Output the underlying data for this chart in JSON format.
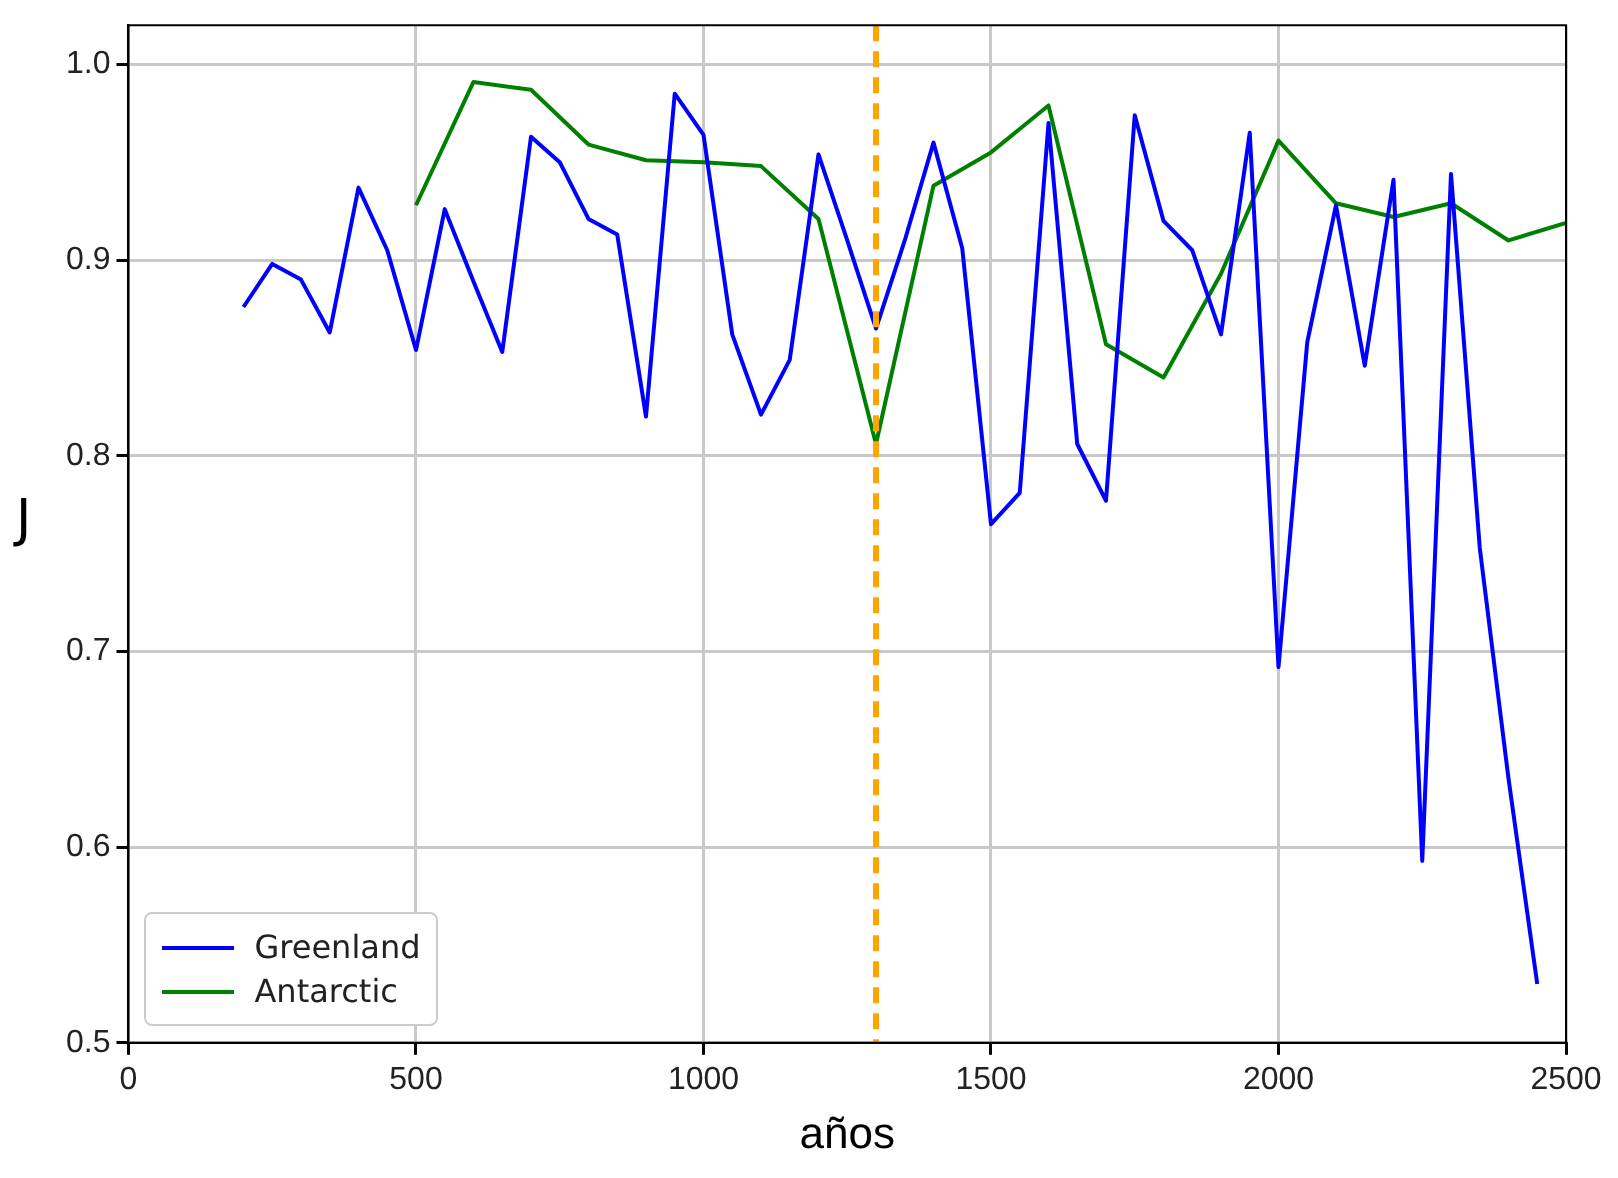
{
  "chart_data": {
    "type": "line",
    "xlabel": "años",
    "ylabel": "J",
    "xlim": [
      0,
      2500
    ],
    "xticks": [
      0,
      500,
      1000,
      1500,
      2000,
      2500
    ],
    "ylim": [
      0.5,
      1.02
    ],
    "yticks": [
      {
        "value": 0.5,
        "label": "0.5"
      },
      {
        "value": 0.6,
        "label": "0.6"
      },
      {
        "value": 0.7,
        "label": "0.7"
      },
      {
        "value": 0.8,
        "label": "0.8"
      },
      {
        "value": 0.9,
        "label": "0.9"
      },
      {
        "value": 1.0,
        "label": "1.0"
      }
    ],
    "grid": true,
    "legend": "bottom left",
    "marker": "none",
    "line_style": "solid",
    "series": [
      {
        "name": "Greenland",
        "color": "#0000ff",
        "x": [
          200,
          250,
          300,
          350,
          400,
          450,
          500,
          550,
          600,
          650,
          700,
          750,
          800,
          850,
          900,
          950,
          1000,
          1050,
          1100,
          1150,
          1200,
          1250,
          1300,
          1350,
          1400,
          1450,
          1500,
          1550,
          1600,
          1650,
          1700,
          1750,
          1800,
          1850,
          1900,
          1950,
          2000,
          2050,
          2100,
          2150,
          2200,
          2250,
          2300,
          2350,
          2400,
          2450
        ],
        "values": [
          0.876,
          0.898,
          0.89,
          0.863,
          0.937,
          0.905,
          0.854,
          0.926,
          0.889,
          0.853,
          0.963,
          0.95,
          0.921,
          0.913,
          0.82,
          0.985,
          0.964,
          0.862,
          0.821,
          0.849,
          0.954,
          0.91,
          0.865,
          0.91,
          0.96,
          0.906,
          0.765,
          0.781,
          0.97,
          0.806,
          0.777,
          0.974,
          0.92,
          0.905,
          0.862,
          0.965,
          0.692,
          0.858,
          0.928,
          0.846,
          0.941,
          0.593,
          0.944,
          0.753,
          0.635,
          0.53
        ]
      },
      {
        "name": "Antarctic",
        "color": "#008000",
        "x": [
          500,
          600,
          700,
          800,
          900,
          1000,
          1100,
          1200,
          1300,
          1400,
          1500,
          1600,
          1700,
          1800,
          1900,
          2000,
          2100,
          2200,
          2300,
          2400,
          2500
        ],
        "values": [
          0.928,
          0.991,
          0.987,
          0.959,
          0.951,
          0.95,
          0.948,
          0.921,
          0.806,
          0.938,
          0.955,
          0.979,
          0.857,
          0.84,
          0.893,
          0.961,
          0.929,
          0.922,
          0.929,
          0.91,
          0.919
        ]
      }
    ],
    "ref_lines": [
      {
        "axis": "x",
        "value": 1300,
        "color": "#ffa500",
        "line_style": "dashed"
      }
    ]
  }
}
